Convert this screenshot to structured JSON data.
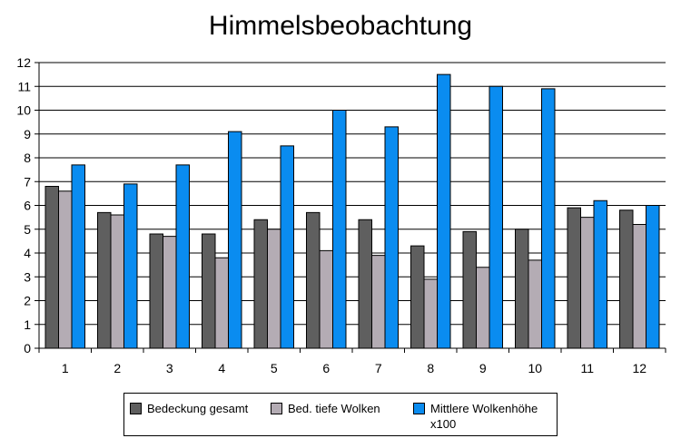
{
  "chart_data": {
    "type": "bar",
    "title": "Himmelsbeobachtung",
    "xlabel": "",
    "ylabel": "",
    "categories": [
      "1",
      "2",
      "3",
      "4",
      "5",
      "6",
      "7",
      "8",
      "9",
      "10",
      "11",
      "12"
    ],
    "ylim": [
      0,
      12
    ],
    "yticks": [
      0,
      1,
      2,
      3,
      4,
      5,
      6,
      7,
      8,
      9,
      10,
      11,
      12
    ],
    "grid": true,
    "legend_position": "bottom",
    "series": [
      {
        "name": "Bedeckung gesamt",
        "color": "#5f5f5f",
        "values": [
          6.8,
          5.7,
          4.8,
          4.8,
          5.4,
          5.7,
          5.4,
          4.3,
          4.9,
          5.0,
          5.9,
          5.8
        ]
      },
      {
        "name": "Bed. tiefe Wolken",
        "color": "#b4acb4",
        "values": [
          6.6,
          5.6,
          4.7,
          3.8,
          5.0,
          4.1,
          3.9,
          2.9,
          3.4,
          3.7,
          5.5,
          5.2
        ]
      },
      {
        "name": "Mittlere Wolkenhöhe x100",
        "color": "#0a8cf0",
        "values": [
          7.7,
          6.9,
          7.7,
          9.1,
          8.5,
          10.0,
          9.3,
          11.5,
          11.0,
          10.9,
          6.2,
          6.0
        ]
      }
    ]
  }
}
